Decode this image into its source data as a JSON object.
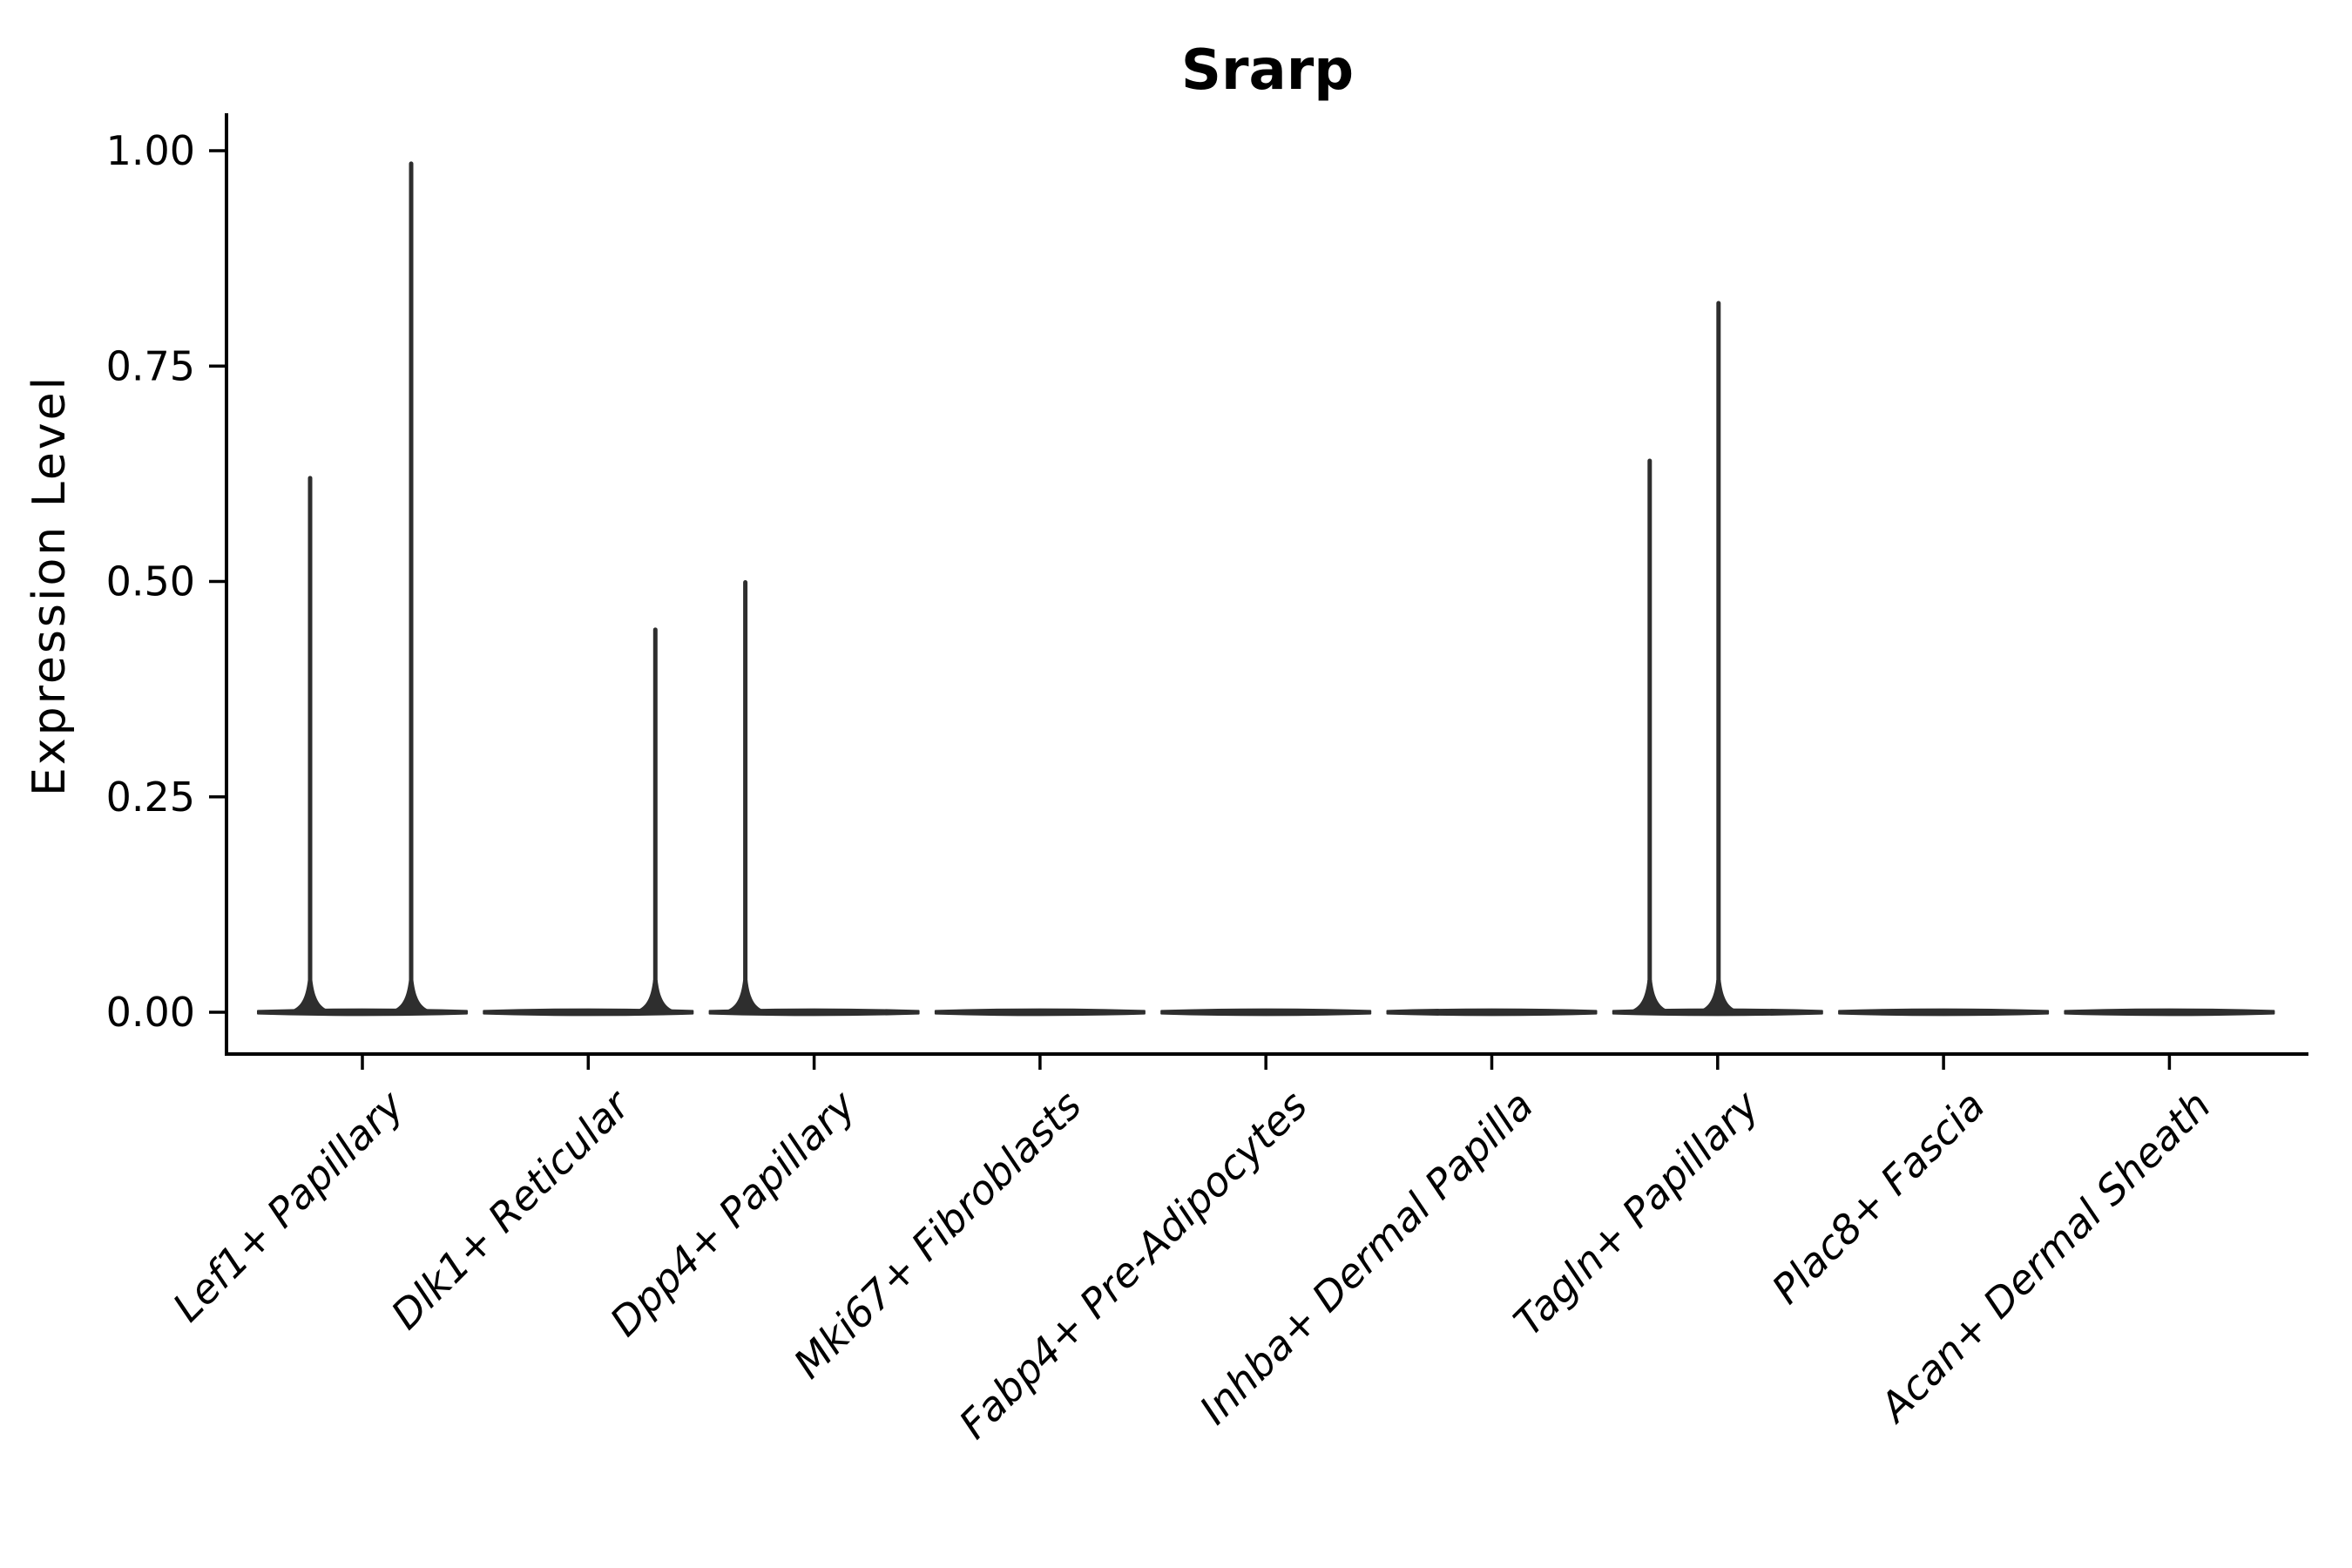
{
  "chart_data": {
    "type": "violin",
    "title": "Srarp",
    "xlabel": "",
    "ylabel": "Expression Level",
    "ylim": [
      0,
      1.0
    ],
    "yticks": [
      {
        "value": 0.0,
        "label": "0.00"
      },
      {
        "value": 0.25,
        "label": "0.25"
      },
      {
        "value": 0.5,
        "label": "0.50"
      },
      {
        "value": 0.75,
        "label": "0.75"
      },
      {
        "value": 1.0,
        "label": "1.00"
      }
    ],
    "x_tick_rotation_deg": 45,
    "grid": "off",
    "legend": "none",
    "categories": [
      "Lef1+ Papillary",
      "Dlk1+ Reticular",
      "Dpp4+ Papillary",
      "Mki67+ Fibroblasts",
      "Fabp4+ Pre-Adipocytes",
      "Inhba+ Dermal Papilla",
      "Tagln+ Papillary",
      "Plac8+ Fascia",
      "Acan+ Dermal Sheath"
    ],
    "violins": [
      {
        "label": "Lef1+ Papillary",
        "base_at_zero": true,
        "spikes": [
          {
            "dx": -60,
            "value": 0.62
          },
          {
            "dx": 56,
            "value": 0.985
          }
        ]
      },
      {
        "label": "Dlk1+ Reticular",
        "base_at_zero": true,
        "spikes": [
          {
            "dx": 77,
            "value": 0.444
          }
        ]
      },
      {
        "label": "Dpp4+ Papillary",
        "base_at_zero": true,
        "spikes": [
          {
            "dx": -79,
            "value": 0.499
          }
        ]
      },
      {
        "label": "Mki67+ Fibroblasts",
        "base_at_zero": true,
        "spikes": []
      },
      {
        "label": "Fabp4+ Pre-Adipocytes",
        "base_at_zero": true,
        "spikes": []
      },
      {
        "label": "Inhba+ Dermal Papilla",
        "base_at_zero": true,
        "spikes": []
      },
      {
        "label": "Tagln+ Papillary",
        "base_at_zero": true,
        "spikes": [
          {
            "dx": -78,
            "value": 0.64
          },
          {
            "dx": 1,
            "value": 0.823
          }
        ]
      },
      {
        "label": "Plac8+ Fascia",
        "base_at_zero": true,
        "spikes": []
      },
      {
        "label": "Acan+ Dermal Sheath",
        "base_at_zero": true,
        "spikes": []
      }
    ],
    "colors": {
      "violin": "#2e2e2e",
      "axis": "#000000",
      "text": "#000000",
      "background": "#ffffff"
    }
  }
}
